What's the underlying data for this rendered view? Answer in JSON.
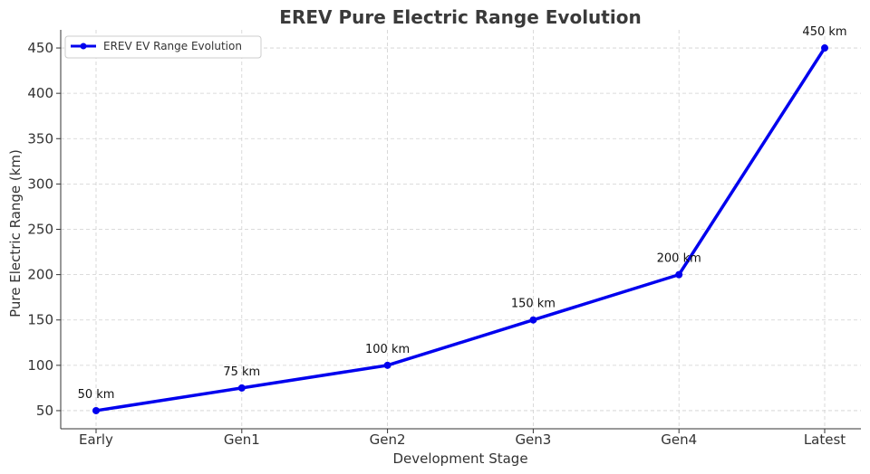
{
  "chart_data": {
    "type": "line",
    "title": "EREV Pure Electric Range Evolution",
    "xlabel": "Development Stage",
    "ylabel": "Pure Electric Range (km)",
    "categories": [
      "Early",
      "Gen1",
      "Gen2",
      "Gen3",
      "Gen4",
      "Latest"
    ],
    "series": [
      {
        "name": "EREV EV Range Evolution",
        "values": [
          50,
          75,
          100,
          150,
          200,
          450
        ],
        "color": "#0000ee"
      }
    ],
    "data_labels": [
      "50 km",
      "75 km",
      "100 km",
      "150 km",
      "200 km",
      "450 km"
    ],
    "ylim": [
      30,
      470
    ],
    "yticks": [
      50,
      100,
      150,
      200,
      250,
      300,
      350,
      400,
      450
    ],
    "grid": true,
    "legend_position": "top-left"
  }
}
